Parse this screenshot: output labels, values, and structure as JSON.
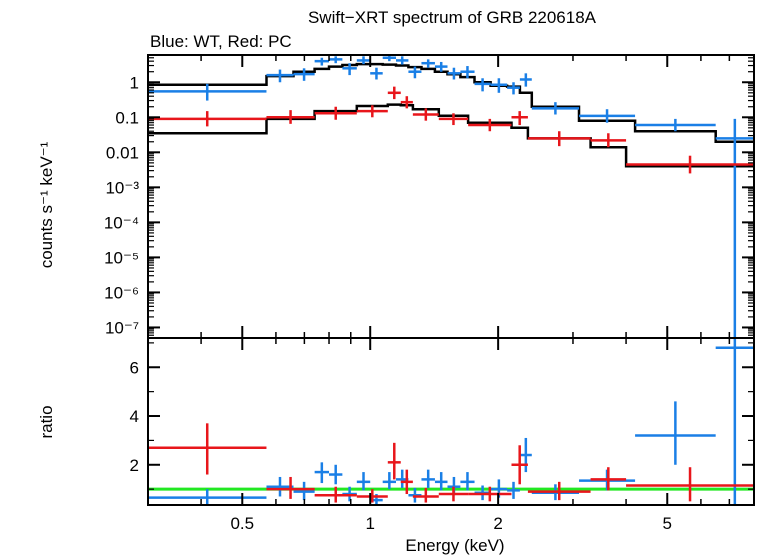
{
  "chart_data": {
    "type": "scatter",
    "title": "Swift−XRT spectrum of GRB 220618A",
    "subtitle": "Blue: WT, Red: PC",
    "xlabel": "Energy (keV)",
    "x_scale": "log",
    "xlim": [
      0.3,
      8.0
    ],
    "x_ticks": [
      {
        "value": 0.5,
        "label": "0.5"
      },
      {
        "value": 1,
        "label": "1"
      },
      {
        "value": 2,
        "label": "2"
      },
      {
        "value": 5,
        "label": "5"
      }
    ],
    "grid": false,
    "colors": {
      "wt": "#1a7fe6",
      "pc": "#e8161b",
      "model": "#000000",
      "unity": "#22e822"
    },
    "panels": [
      {
        "id": "spectrum",
        "ylabel": "counts s⁻¹ keV⁻¹",
        "y_scale": "log",
        "ylim": [
          5e-08,
          6
        ],
        "y_ticks": [
          {
            "value": 1,
            "label": "1"
          },
          {
            "value": 0.1,
            "label": "0.1"
          },
          {
            "value": 0.01,
            "label": "0.01"
          },
          {
            "value": 0.001,
            "label": "10⁻³"
          },
          {
            "value": 0.0001,
            "label": "10⁻⁴"
          },
          {
            "value": 1e-05,
            "label": "10⁻⁵"
          },
          {
            "value": 1e-06,
            "label": "10⁻⁶"
          },
          {
            "value": 1e-07,
            "label": "10⁻⁷"
          }
        ],
        "series": [
          {
            "name": "WT",
            "color": "#1a7fe6",
            "points": [
              {
                "xlo": 0.3,
                "xhi": 0.57,
                "y": 0.55,
                "ylo": 0.3,
                "yhi": 0.9
              },
              {
                "xlo": 0.57,
                "xhi": 0.66,
                "y": 1.6,
                "ylo": 1.0,
                "yhi": 2.3
              },
              {
                "xlo": 0.66,
                "xhi": 0.74,
                "y": 1.7,
                "ylo": 1.1,
                "yhi": 2.5
              },
              {
                "xlo": 0.74,
                "xhi": 0.8,
                "y": 4.0,
                "ylo": 3.0,
                "yhi": 5.0
              },
              {
                "xlo": 0.8,
                "xhi": 0.86,
                "y": 4.5,
                "ylo": 3.5,
                "yhi": 5.5
              },
              {
                "xlo": 0.86,
                "xhi": 0.93,
                "y": 2.5,
                "ylo": 1.6,
                "yhi": 3.5
              },
              {
                "xlo": 0.93,
                "xhi": 1.0,
                "y": 4.2,
                "ylo": 3.3,
                "yhi": 5.5
              },
              {
                "xlo": 1.0,
                "xhi": 1.07,
                "y": 1.8,
                "ylo": 1.2,
                "yhi": 2.6
              },
              {
                "xlo": 1.07,
                "xhi": 1.15,
                "y": 5.0,
                "ylo": 4.0,
                "yhi": 6.0
              },
              {
                "xlo": 1.15,
                "xhi": 1.23,
                "y": 4.2,
                "ylo": 3.2,
                "yhi": 5.5
              },
              {
                "xlo": 1.23,
                "xhi": 1.32,
                "y": 2.0,
                "ylo": 1.3,
                "yhi": 2.8
              },
              {
                "xlo": 1.32,
                "xhi": 1.42,
                "y": 3.5,
                "ylo": 2.6,
                "yhi": 4.5
              },
              {
                "xlo": 1.42,
                "xhi": 1.52,
                "y": 2.8,
                "ylo": 2.0,
                "yhi": 3.8
              },
              {
                "xlo": 1.52,
                "xhi": 1.63,
                "y": 1.8,
                "ylo": 1.2,
                "yhi": 2.6
              },
              {
                "xlo": 1.63,
                "xhi": 1.76,
                "y": 2.0,
                "ylo": 1.3,
                "yhi": 2.9
              },
              {
                "xlo": 1.76,
                "xhi": 1.92,
                "y": 0.9,
                "ylo": 0.55,
                "yhi": 1.3
              },
              {
                "xlo": 1.92,
                "xhi": 2.1,
                "y": 0.85,
                "ylo": 0.5,
                "yhi": 1.3
              },
              {
                "xlo": 2.1,
                "xhi": 2.25,
                "y": 0.7,
                "ylo": 0.45,
                "yhi": 1.0
              },
              {
                "xlo": 2.25,
                "xhi": 2.4,
                "y": 1.2,
                "ylo": 0.75,
                "yhi": 1.8
              },
              {
                "xlo": 2.4,
                "xhi": 3.1,
                "y": 0.18,
                "ylo": 0.12,
                "yhi": 0.27
              },
              {
                "xlo": 3.1,
                "xhi": 4.2,
                "y": 0.11,
                "ylo": 0.07,
                "yhi": 0.17
              },
              {
                "xlo": 4.2,
                "xhi": 6.5,
                "y": 0.06,
                "ylo": 0.04,
                "yhi": 0.09
              },
              {
                "xlo": 6.5,
                "xhi": 8.0,
                "y": 0.025,
                "ylo": 5e-08,
                "yhi": 0.09
              }
            ]
          },
          {
            "name": "PC",
            "color": "#e8161b",
            "points": [
              {
                "xlo": 0.3,
                "xhi": 0.57,
                "y": 0.09,
                "ylo": 0.055,
                "yhi": 0.15
              },
              {
                "xlo": 0.57,
                "xhi": 0.74,
                "y": 0.1,
                "ylo": 0.065,
                "yhi": 0.16
              },
              {
                "xlo": 0.74,
                "xhi": 0.93,
                "y": 0.13,
                "ylo": 0.085,
                "yhi": 0.2
              },
              {
                "xlo": 0.93,
                "xhi": 1.1,
                "y": 0.15,
                "ylo": 0.1,
                "yhi": 0.22
              },
              {
                "xlo": 1.1,
                "xhi": 1.18,
                "y": 0.5,
                "ylo": 0.33,
                "yhi": 0.75
              },
              {
                "xlo": 1.18,
                "xhi": 1.26,
                "y": 0.27,
                "ylo": 0.18,
                "yhi": 0.4
              },
              {
                "xlo": 1.26,
                "xhi": 1.45,
                "y": 0.12,
                "ylo": 0.08,
                "yhi": 0.18
              },
              {
                "xlo": 1.45,
                "xhi": 1.7,
                "y": 0.09,
                "ylo": 0.06,
                "yhi": 0.13
              },
              {
                "xlo": 1.7,
                "xhi": 2.15,
                "y": 0.06,
                "ylo": 0.04,
                "yhi": 0.09
              },
              {
                "xlo": 2.15,
                "xhi": 2.35,
                "y": 0.1,
                "ylo": 0.06,
                "yhi": 0.15
              },
              {
                "xlo": 2.35,
                "xhi": 3.3,
                "y": 0.025,
                "ylo": 0.015,
                "yhi": 0.04
              },
              {
                "xlo": 3.3,
                "xhi": 4.0,
                "y": 0.022,
                "ylo": 0.014,
                "yhi": 0.035
              },
              {
                "xlo": 4.0,
                "xhi": 8.0,
                "y": 0.0045,
                "ylo": 0.0025,
                "yhi": 0.008
              }
            ]
          }
        ],
        "models": [
          {
            "steps": [
              {
                "xlo": 0.3,
                "xhi": 0.57,
                "y": 0.85
              },
              {
                "xlo": 0.57,
                "xhi": 0.66,
                "y": 1.5
              },
              {
                "xlo": 0.66,
                "xhi": 0.74,
                "y": 2.0
              },
              {
                "xlo": 0.74,
                "xhi": 0.8,
                "y": 2.4
              },
              {
                "xlo": 0.8,
                "xhi": 0.86,
                "y": 2.8
              },
              {
                "xlo": 0.86,
                "xhi": 0.93,
                "y": 3.1
              },
              {
                "xlo": 0.93,
                "xhi": 1.0,
                "y": 3.3
              },
              {
                "xlo": 1.0,
                "xhi": 1.07,
                "y": 3.3
              },
              {
                "xlo": 1.07,
                "xhi": 1.15,
                "y": 3.2
              },
              {
                "xlo": 1.15,
                "xhi": 1.23,
                "y": 3.0
              },
              {
                "xlo": 1.23,
                "xhi": 1.32,
                "y": 2.7
              },
              {
                "xlo": 1.32,
                "xhi": 1.42,
                "y": 2.4
              },
              {
                "xlo": 1.42,
                "xhi": 1.52,
                "y": 2.0
              },
              {
                "xlo": 1.52,
                "xhi": 1.63,
                "y": 1.7
              },
              {
                "xlo": 1.63,
                "xhi": 1.76,
                "y": 1.4
              },
              {
                "xlo": 1.76,
                "xhi": 1.92,
                "y": 1.0
              },
              {
                "xlo": 1.92,
                "xhi": 2.1,
                "y": 0.8
              },
              {
                "xlo": 2.1,
                "xhi": 2.25,
                "y": 0.75
              },
              {
                "xlo": 2.25,
                "xhi": 2.4,
                "y": 0.5
              },
              {
                "xlo": 2.4,
                "xhi": 3.1,
                "y": 0.2
              },
              {
                "xlo": 3.1,
                "xhi": 4.2,
                "y": 0.08
              },
              {
                "xlo": 4.2,
                "xhi": 6.5,
                "y": 0.04
              },
              {
                "xlo": 6.5,
                "xhi": 8.0,
                "y": 0.02
              }
            ]
          },
          {
            "steps": [
              {
                "xlo": 0.3,
                "xhi": 0.57,
                "y": 0.035
              },
              {
                "xlo": 0.57,
                "xhi": 0.74,
                "y": 0.09
              },
              {
                "xlo": 0.74,
                "xhi": 0.93,
                "y": 0.15
              },
              {
                "xlo": 0.93,
                "xhi": 1.1,
                "y": 0.21
              },
              {
                "xlo": 1.1,
                "xhi": 1.18,
                "y": 0.23
              },
              {
                "xlo": 1.18,
                "xhi": 1.26,
                "y": 0.22
              },
              {
                "xlo": 1.26,
                "xhi": 1.45,
                "y": 0.17
              },
              {
                "xlo": 1.45,
                "xhi": 1.7,
                "y": 0.11
              },
              {
                "xlo": 1.7,
                "xhi": 2.15,
                "y": 0.07
              },
              {
                "xlo": 2.15,
                "xhi": 2.35,
                "y": 0.05
              },
              {
                "xlo": 2.35,
                "xhi": 3.3,
                "y": 0.025
              },
              {
                "xlo": 3.3,
                "xhi": 4.0,
                "y": 0.014
              },
              {
                "xlo": 4.0,
                "xhi": 8.0,
                "y": 0.004
              }
            ]
          }
        ]
      },
      {
        "id": "ratio",
        "ylabel": "ratio",
        "y_scale": "linear",
        "ylim": [
          0.35,
          7.2
        ],
        "y_ticks": [
          {
            "value": 2,
            "label": "2"
          },
          {
            "value": 4,
            "label": "4"
          },
          {
            "value": 6,
            "label": "6"
          }
        ],
        "reference_line": 1,
        "series": [
          {
            "name": "WT",
            "color": "#1a7fe6",
            "points": [
              {
                "xlo": 0.3,
                "xhi": 0.57,
                "y": 0.65,
                "ylo": 0.35,
                "yhi": 1.0
              },
              {
                "xlo": 0.57,
                "xhi": 0.66,
                "y": 1.1,
                "ylo": 0.7,
                "yhi": 1.5
              },
              {
                "xlo": 0.66,
                "xhi": 0.74,
                "y": 0.9,
                "ylo": 0.55,
                "yhi": 1.3
              },
              {
                "xlo": 0.74,
                "xhi": 0.8,
                "y": 1.7,
                "ylo": 1.25,
                "yhi": 2.1
              },
              {
                "xlo": 0.8,
                "xhi": 0.86,
                "y": 1.6,
                "ylo": 1.2,
                "yhi": 2.0
              },
              {
                "xlo": 0.86,
                "xhi": 0.93,
                "y": 0.8,
                "ylo": 0.5,
                "yhi": 1.1
              },
              {
                "xlo": 0.93,
                "xhi": 1.0,
                "y": 1.3,
                "ylo": 0.95,
                "yhi": 1.7
              },
              {
                "xlo": 1.0,
                "xhi": 1.07,
                "y": 0.55,
                "ylo": 0.35,
                "yhi": 0.8
              },
              {
                "xlo": 1.07,
                "xhi": 1.15,
                "y": 1.3,
                "ylo": 1.0,
                "yhi": 1.7
              },
              {
                "xlo": 1.15,
                "xhi": 1.23,
                "y": 1.4,
                "ylo": 1.05,
                "yhi": 1.8
              },
              {
                "xlo": 1.23,
                "xhi": 1.32,
                "y": 0.75,
                "ylo": 0.45,
                "yhi": 1.05
              },
              {
                "xlo": 1.32,
                "xhi": 1.42,
                "y": 1.4,
                "ylo": 1.05,
                "yhi": 1.8
              },
              {
                "xlo": 1.42,
                "xhi": 1.52,
                "y": 1.3,
                "ylo": 0.95,
                "yhi": 1.7
              },
              {
                "xlo": 1.52,
                "xhi": 1.63,
                "y": 1.1,
                "ylo": 0.75,
                "yhi": 1.5
              },
              {
                "xlo": 1.63,
                "xhi": 1.76,
                "y": 1.3,
                "ylo": 0.95,
                "yhi": 1.7
              },
              {
                "xlo": 1.76,
                "xhi": 1.92,
                "y": 0.85,
                "ylo": 0.55,
                "yhi": 1.15
              },
              {
                "xlo": 1.92,
                "xhi": 2.1,
                "y": 1.0,
                "ylo": 0.65,
                "yhi": 1.4
              },
              {
                "xlo": 2.1,
                "xhi": 2.25,
                "y": 0.95,
                "ylo": 0.6,
                "yhi": 1.3
              },
              {
                "xlo": 2.25,
                "xhi": 2.4,
                "y": 2.4,
                "ylo": 1.7,
                "yhi": 3.1
              },
              {
                "xlo": 2.4,
                "xhi": 3.1,
                "y": 0.85,
                "ylo": 0.55,
                "yhi": 1.2
              },
              {
                "xlo": 3.1,
                "xhi": 4.2,
                "y": 1.35,
                "ylo": 0.95,
                "yhi": 1.8
              },
              {
                "xlo": 4.2,
                "xhi": 6.5,
                "y": 3.2,
                "ylo": 2.0,
                "yhi": 4.6
              },
              {
                "xlo": 6.5,
                "xhi": 8.0,
                "y": 6.8,
                "ylo": 0.35,
                "yhi": 7.2
              }
            ]
          },
          {
            "name": "PC",
            "color": "#e8161b",
            "points": [
              {
                "xlo": 0.3,
                "xhi": 0.57,
                "y": 2.7,
                "ylo": 1.6,
                "yhi": 3.7
              },
              {
                "xlo": 0.57,
                "xhi": 0.74,
                "y": 1.0,
                "ylo": 0.6,
                "yhi": 1.5
              },
              {
                "xlo": 0.74,
                "xhi": 0.93,
                "y": 0.75,
                "ylo": 0.45,
                "yhi": 1.1
              },
              {
                "xlo": 0.93,
                "xhi": 1.1,
                "y": 0.7,
                "ylo": 0.45,
                "yhi": 1.0
              },
              {
                "xlo": 1.1,
                "xhi": 1.18,
                "y": 2.1,
                "ylo": 1.4,
                "yhi": 2.9
              },
              {
                "xlo": 1.18,
                "xhi": 1.26,
                "y": 1.3,
                "ylo": 0.8,
                "yhi": 1.8
              },
              {
                "xlo": 1.26,
                "xhi": 1.45,
                "y": 0.7,
                "ylo": 0.45,
                "yhi": 1.05
              },
              {
                "xlo": 1.45,
                "xhi": 1.7,
                "y": 0.8,
                "ylo": 0.5,
                "yhi": 1.1
              },
              {
                "xlo": 1.7,
                "xhi": 2.15,
                "y": 0.8,
                "ylo": 0.5,
                "yhi": 1.1
              },
              {
                "xlo": 2.15,
                "xhi": 2.35,
                "y": 2.0,
                "ylo": 1.2,
                "yhi": 2.8
              },
              {
                "xlo": 2.35,
                "xhi": 3.3,
                "y": 0.9,
                "ylo": 0.55,
                "yhi": 1.3
              },
              {
                "xlo": 3.3,
                "xhi": 4.0,
                "y": 1.4,
                "ylo": 0.95,
                "yhi": 1.9
              },
              {
                "xlo": 4.0,
                "xhi": 8.0,
                "y": 1.15,
                "ylo": 0.5,
                "yhi": 1.9
              }
            ]
          }
        ]
      }
    ]
  }
}
